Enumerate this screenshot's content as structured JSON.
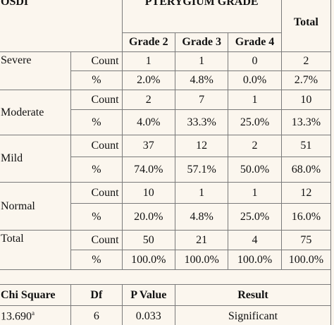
{
  "main_table": {
    "header": {
      "osdi": "OSDI",
      "group": "PTERYGIUM GRADE",
      "total": "Total",
      "grades": [
        "Grade 2",
        "Grade 3",
        "Grade 4"
      ]
    },
    "labels": {
      "count": "Count",
      "percent": "%"
    },
    "groups": [
      {
        "name": "Severe",
        "counts": [
          "1",
          "1",
          "0",
          "2"
        ],
        "percents": [
          "2.0%",
          "4.8%",
          "0.0%",
          "2.7%"
        ]
      },
      {
        "name": "Moderate",
        "counts": [
          "2",
          "7",
          "1",
          "10"
        ],
        "percents": [
          "4.0%",
          "33.3%",
          "25.0%",
          "13.3%"
        ]
      },
      {
        "name": "Mild",
        "counts": [
          "37",
          "12",
          "2",
          "51"
        ],
        "percents": [
          "74.0%",
          "57.1%",
          "50.0%",
          "68.0%"
        ]
      },
      {
        "name": "Normal",
        "counts": [
          "10",
          "1",
          "1",
          "12"
        ],
        "percents": [
          "20.0%",
          "4.8%",
          "25.0%",
          "16.0%"
        ]
      },
      {
        "name": "Total",
        "counts": [
          "50",
          "21",
          "4",
          "75"
        ],
        "percents": [
          "100.0%",
          "100.0%",
          "100.0%",
          "100.0%"
        ]
      }
    ]
  },
  "stats_table": {
    "headers": [
      "Chi Square",
      "Df",
      "P Value",
      "Result"
    ],
    "row": {
      "chi": "13.690",
      "chi_sup": "a",
      "df": "6",
      "p": "0.033",
      "result": "Significant"
    }
  }
}
